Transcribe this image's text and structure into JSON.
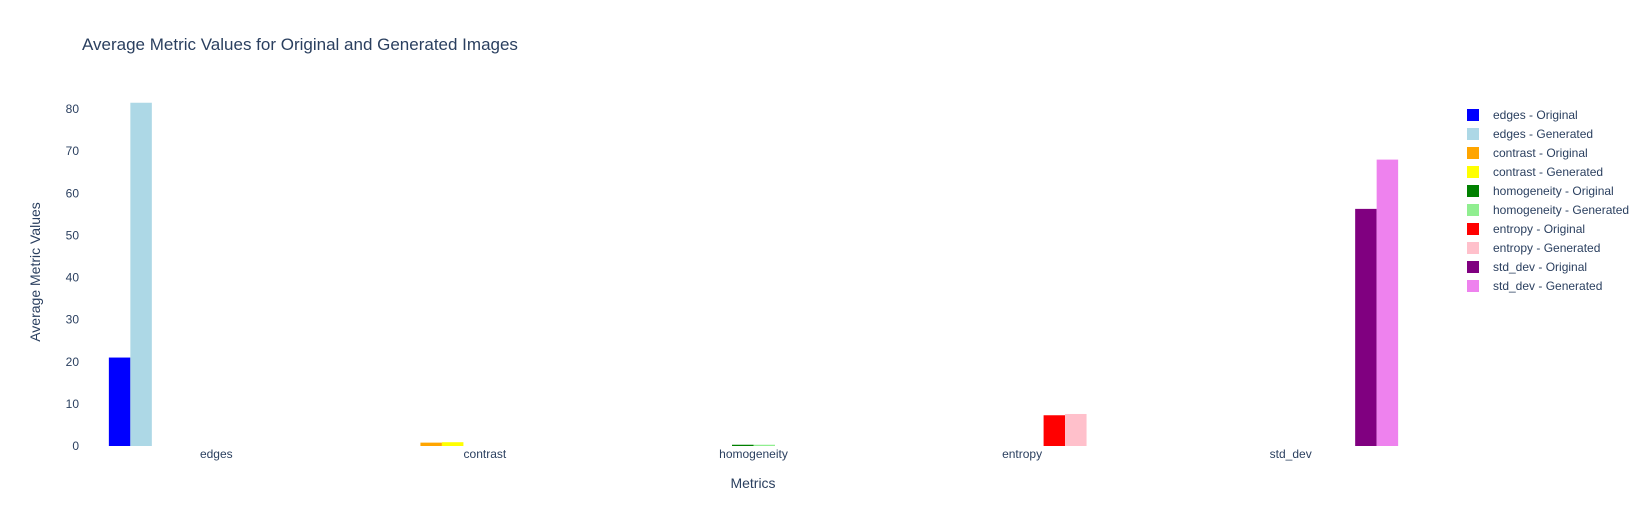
{
  "chart_data": {
    "type": "bar",
    "title": "Average Metric Values for Original and Generated Images",
    "xlabel": "Metrics",
    "ylabel": "Average Metric Values",
    "categories": [
      "edges",
      "contrast",
      "homogeneity",
      "entropy",
      "std_dev"
    ],
    "ylim": [
      0,
      85
    ],
    "yticks": [
      0,
      10,
      20,
      30,
      40,
      50,
      60,
      70,
      80
    ],
    "grid": false,
    "legend_position": "top-right",
    "series": [
      {
        "name": "edges - Original",
        "color": "#0000ff",
        "values": [
          21,
          null,
          null,
          null,
          null
        ]
      },
      {
        "name": "edges - Generated",
        "color": "#add8e6",
        "values": [
          81.5,
          null,
          null,
          null,
          null
        ]
      },
      {
        "name": "contrast - Original",
        "color": "#ffa500",
        "values": [
          null,
          0.8,
          null,
          null,
          null
        ]
      },
      {
        "name": "contrast - Generated",
        "color": "#ffff00",
        "values": [
          null,
          0.9,
          null,
          null,
          null
        ]
      },
      {
        "name": "homogeneity - Original",
        "color": "#008000",
        "values": [
          null,
          null,
          0.3,
          null,
          null
        ]
      },
      {
        "name": "homogeneity - Generated",
        "color": "#90ee90",
        "values": [
          null,
          null,
          0.3,
          null,
          null
        ]
      },
      {
        "name": "entropy - Original",
        "color": "#ff0000",
        "values": [
          null,
          null,
          null,
          7.3,
          null
        ]
      },
      {
        "name": "entropy - Generated",
        "color": "#ffc0cb",
        "values": [
          null,
          null,
          null,
          7.6,
          null
        ]
      },
      {
        "name": "std_dev - Original",
        "color": "#800080",
        "values": [
          null,
          null,
          null,
          null,
          56.3
        ]
      },
      {
        "name": "std_dev - Generated",
        "color": "#ee82ee",
        "values": [
          null,
          null,
          null,
          null,
          68
        ]
      }
    ]
  }
}
